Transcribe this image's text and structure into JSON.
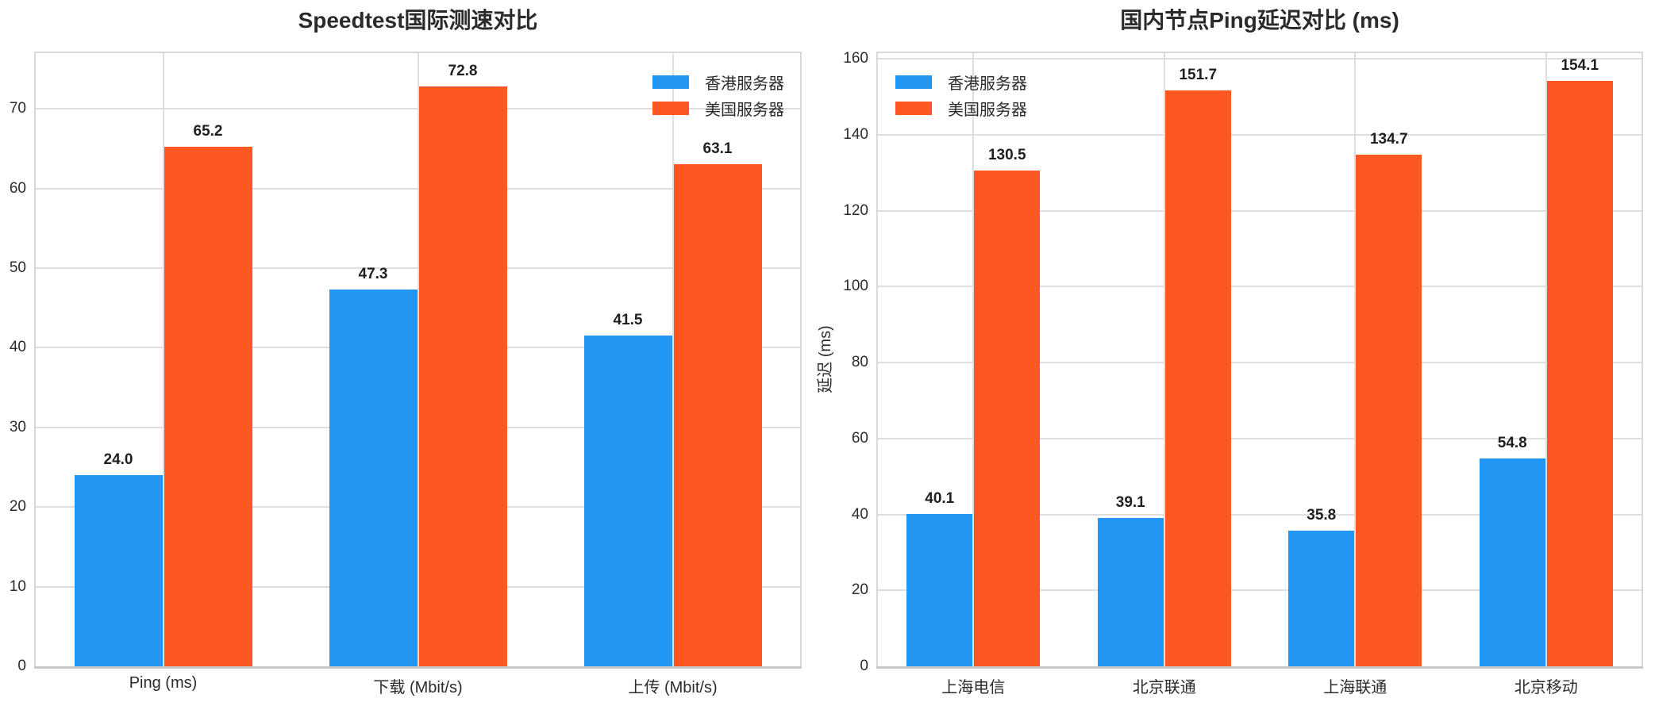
{
  "figure": {
    "background": "#ffffff",
    "grid_color": "#dedede",
    "frame_color": "#d9d9d9",
    "axis_color": "#c9c9c9",
    "text_color": "#2b2b2b"
  },
  "chart_data": [
    {
      "type": "bar",
      "title": "Speedtest国际测速对比",
      "categories": [
        "Ping (ms)",
        "下载 (Mbit/s)",
        "上传 (Mbit/s)"
      ],
      "series": [
        {
          "name": "香港服务器",
          "color": "#2196F3",
          "values": [
            24.0,
            47.3,
            41.5
          ]
        },
        {
          "name": "美国服务器",
          "color": "#FF5722",
          "values": [
            65.2,
            72.8,
            63.1
          ]
        }
      ],
      "xlabel": "",
      "ylabel": "",
      "ylim": [
        0,
        77
      ],
      "yticks": [
        0,
        10,
        20,
        30,
        40,
        50,
        60,
        70
      ],
      "grid": true,
      "legend_position": "top-right"
    },
    {
      "type": "bar",
      "title": "国内节点Ping延迟对比 (ms)",
      "categories": [
        "上海电信",
        "北京联通",
        "上海联通",
        "北京移动"
      ],
      "series": [
        {
          "name": "香港服务器",
          "color": "#2196F3",
          "values": [
            40.1,
            39.1,
            35.8,
            54.8
          ]
        },
        {
          "name": "美国服务器",
          "color": "#FF5722",
          "values": [
            130.5,
            151.7,
            134.7,
            154.1
          ]
        }
      ],
      "xlabel": "",
      "ylabel": "延迟 (ms)",
      "ylim": [
        0,
        161.5
      ],
      "yticks": [
        0,
        20,
        40,
        60,
        80,
        100,
        120,
        140,
        160
      ],
      "grid": true,
      "legend_position": "top-left"
    }
  ]
}
